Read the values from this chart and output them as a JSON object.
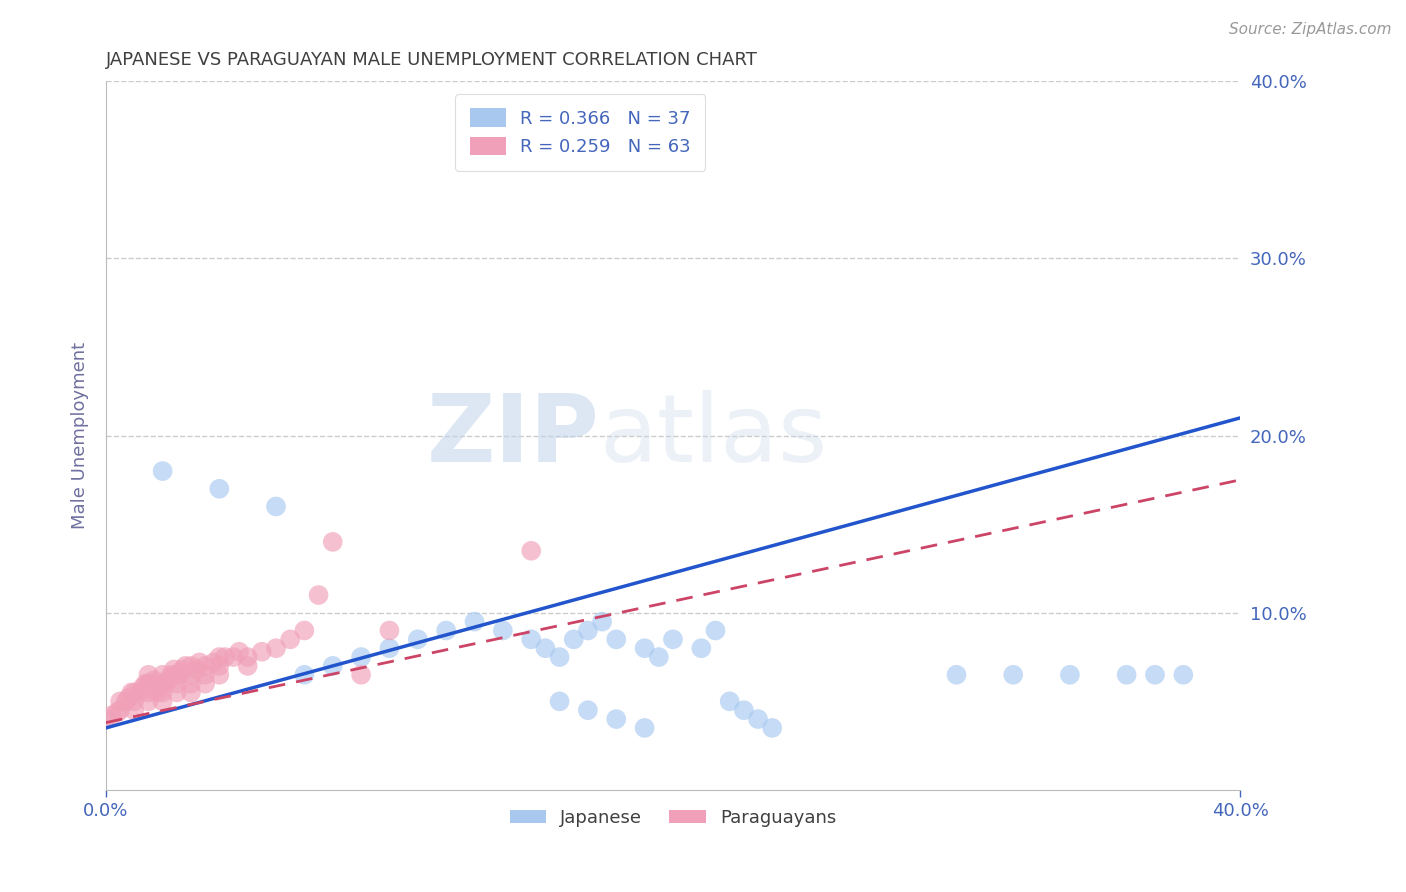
{
  "title": "JAPANESE VS PARAGUAYAN MALE UNEMPLOYMENT CORRELATION CHART",
  "source_text": "Source: ZipAtlas.com",
  "ylabel": "Male Unemployment",
  "xlim": [
    0.0,
    0.4
  ],
  "ylim": [
    0.0,
    0.4
  ],
  "japanese_color": "#a8c8f0",
  "paraguayan_color": "#f0a0b8",
  "background_color": "#ffffff",
  "grid_color": "#cccccc",
  "title_color": "#404040",
  "axis_label_color": "#7070a0",
  "tick_label_color": "#4466bb",
  "trend_blue": "#2255cc",
  "trend_pink": "#cc4466",
  "japanese_points_x": [
    0.02,
    0.04,
    0.06,
    0.07,
    0.08,
    0.09,
    0.1,
    0.11,
    0.12,
    0.13,
    0.14,
    0.15,
    0.155,
    0.16,
    0.165,
    0.17,
    0.175,
    0.18,
    0.19,
    0.195,
    0.2,
    0.21,
    0.215,
    0.22,
    0.225,
    0.23,
    0.235,
    0.16,
    0.17,
    0.18,
    0.19,
    0.3,
    0.32,
    0.34,
    0.36,
    0.37,
    0.38
  ],
  "japanese_points_y": [
    0.18,
    0.17,
    0.16,
    0.065,
    0.07,
    0.075,
    0.08,
    0.085,
    0.09,
    0.095,
    0.09,
    0.085,
    0.08,
    0.075,
    0.085,
    0.09,
    0.095,
    0.085,
    0.08,
    0.075,
    0.085,
    0.08,
    0.09,
    0.05,
    0.045,
    0.04,
    0.035,
    0.05,
    0.045,
    0.04,
    0.035,
    0.065,
    0.065,
    0.065,
    0.065,
    0.065,
    0.065
  ],
  "paraguayan_points_x": [
    0.0,
    0.002,
    0.004,
    0.005,
    0.005,
    0.007,
    0.008,
    0.009,
    0.01,
    0.01,
    0.01,
    0.012,
    0.013,
    0.014,
    0.015,
    0.015,
    0.015,
    0.015,
    0.016,
    0.017,
    0.018,
    0.019,
    0.02,
    0.02,
    0.02,
    0.02,
    0.021,
    0.022,
    0.023,
    0.024,
    0.025,
    0.025,
    0.025,
    0.026,
    0.027,
    0.028,
    0.03,
    0.03,
    0.03,
    0.03,
    0.032,
    0.033,
    0.035,
    0.035,
    0.035,
    0.038,
    0.04,
    0.04,
    0.04,
    0.042,
    0.045,
    0.047,
    0.05,
    0.05,
    0.055,
    0.06,
    0.065,
    0.07,
    0.075,
    0.08,
    0.09,
    0.1,
    0.15
  ],
  "paraguayan_points_y": [
    0.04,
    0.042,
    0.044,
    0.045,
    0.05,
    0.05,
    0.052,
    0.055,
    0.045,
    0.05,
    0.055,
    0.055,
    0.058,
    0.06,
    0.05,
    0.055,
    0.06,
    0.065,
    0.06,
    0.062,
    0.055,
    0.058,
    0.05,
    0.055,
    0.06,
    0.065,
    0.06,
    0.062,
    0.065,
    0.068,
    0.055,
    0.06,
    0.065,
    0.065,
    0.068,
    0.07,
    0.055,
    0.06,
    0.065,
    0.07,
    0.068,
    0.072,
    0.06,
    0.065,
    0.07,
    0.072,
    0.065,
    0.07,
    0.075,
    0.075,
    0.075,
    0.078,
    0.07,
    0.075,
    0.078,
    0.08,
    0.085,
    0.09,
    0.11,
    0.14,
    0.065,
    0.09,
    0.135
  ],
  "jp_line_x0": 0.0,
  "jp_line_y0": 0.035,
  "jp_line_x1": 0.4,
  "jp_line_y1": 0.21,
  "py_line_x0": 0.0,
  "py_line_y0": 0.038,
  "py_line_x1": 0.4,
  "py_line_y1": 0.175
}
